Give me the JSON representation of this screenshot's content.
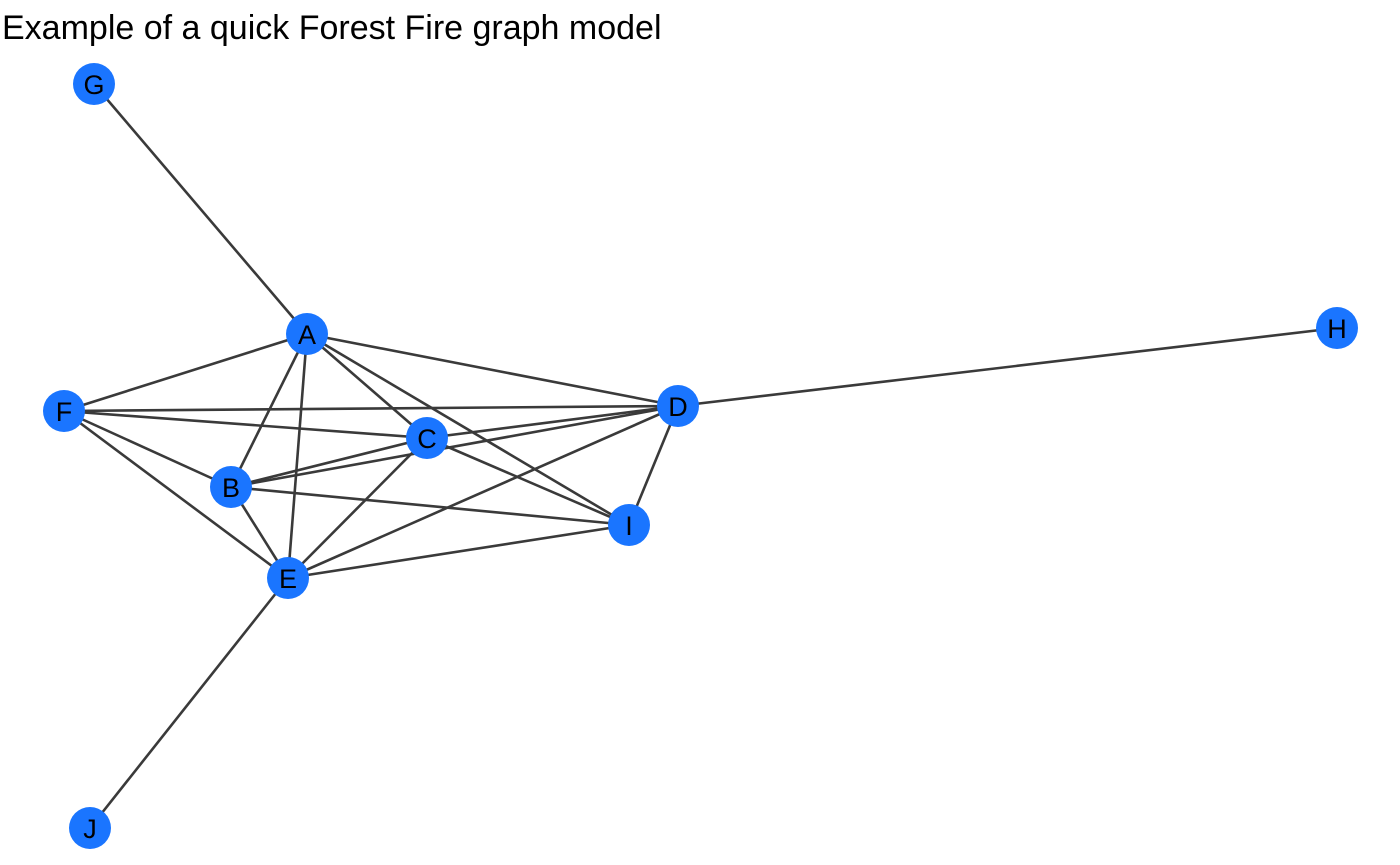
{
  "title": "Example of a quick Forest Fire graph model",
  "style": {
    "node_color": "#1a75ff",
    "edge_color": "#3a3a3a",
    "label_color": "#000000"
  },
  "nodes": [
    {
      "id": "G",
      "label": "G"
    },
    {
      "id": "A",
      "label": "A"
    },
    {
      "id": "H",
      "label": "H"
    },
    {
      "id": "F",
      "label": "F"
    },
    {
      "id": "D",
      "label": "D"
    },
    {
      "id": "C",
      "label": "C"
    },
    {
      "id": "B",
      "label": "B"
    },
    {
      "id": "I",
      "label": "I"
    },
    {
      "id": "E",
      "label": "E"
    },
    {
      "id": "J",
      "label": "J"
    }
  ],
  "edges": [
    [
      "G",
      "A"
    ],
    [
      "A",
      "F"
    ],
    [
      "A",
      "D"
    ],
    [
      "A",
      "B"
    ],
    [
      "A",
      "E"
    ],
    [
      "A",
      "C"
    ],
    [
      "A",
      "I"
    ],
    [
      "F",
      "D"
    ],
    [
      "F",
      "C"
    ],
    [
      "F",
      "B"
    ],
    [
      "F",
      "E"
    ],
    [
      "D",
      "H"
    ],
    [
      "D",
      "C"
    ],
    [
      "D",
      "B"
    ],
    [
      "D",
      "E"
    ],
    [
      "D",
      "I"
    ],
    [
      "C",
      "B"
    ],
    [
      "C",
      "E"
    ],
    [
      "C",
      "I"
    ],
    [
      "B",
      "E"
    ],
    [
      "B",
      "I"
    ],
    [
      "E",
      "I"
    ],
    [
      "E",
      "J"
    ]
  ]
}
